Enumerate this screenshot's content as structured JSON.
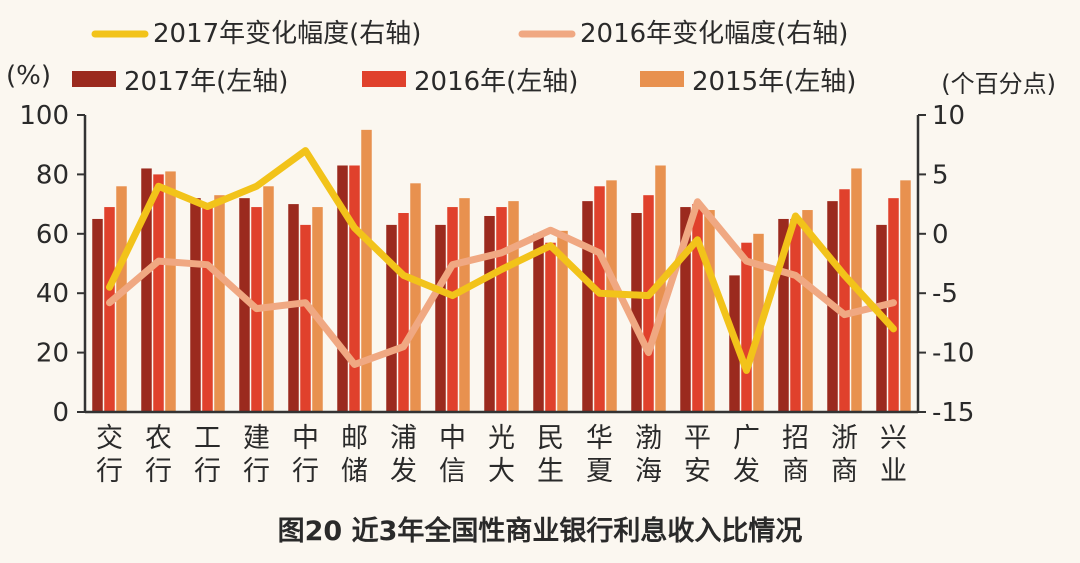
{
  "chart_data": {
    "type": "bar",
    "title": "图20 近3年全国性商业银行利息收入比情况",
    "y_left_unit": "(%)",
    "y_right_unit": "(个百分点)",
    "ylim_left": [
      0,
      100
    ],
    "ylim_right": [
      -15,
      10
    ],
    "yticks_left": [
      0,
      20,
      40,
      60,
      80,
      100
    ],
    "yticks_right": [
      -15,
      -10,
      -5,
      0,
      5,
      10
    ],
    "categories": [
      "交行",
      "农行",
      "工行",
      "建行",
      "中行",
      "邮储",
      "浦发",
      "中信",
      "光大",
      "民生",
      "华夏",
      "渤海",
      "平安",
      "广发",
      "招商",
      "浙商",
      "兴业"
    ],
    "bar_series": [
      {
        "name": "2017年(左轴)",
        "color": "#9b2a1e",
        "values": [
          65,
          82,
          72,
          72,
          70,
          83,
          63,
          63,
          66,
          60,
          71,
          67,
          69,
          46,
          65,
          71,
          63
        ]
      },
      {
        "name": "2016年(左轴)",
        "color": "#e0412c",
        "values": [
          69,
          80,
          70,
          69,
          63,
          83,
          67,
          69,
          69,
          57,
          76,
          73,
          70,
          57,
          65,
          75,
          72
        ]
      },
      {
        "name": "2015年(左轴)",
        "color": "#e8914f",
        "values": [
          76,
          81,
          73,
          76,
          69,
          95,
          77,
          72,
          71,
          61,
          78,
          83,
          68,
          60,
          68,
          82,
          78
        ]
      }
    ],
    "line_series": [
      {
        "name": "2017年变化幅度(右轴)",
        "color": "#f2c31a",
        "values": [
          -4.5,
          4,
          2.3,
          4,
          7,
          0.5,
          -3.5,
          -5.2,
          -3,
          -1,
          -5,
          -5.2,
          -0.5,
          -11.5,
          1.5,
          -3.5,
          -8
        ]
      },
      {
        "name": "2016年变化幅度(右轴)",
        "color": "#f0a882",
        "values": [
          -5.8,
          -2.3,
          -2.6,
          -6.3,
          -5.8,
          -11,
          -9.5,
          -2.6,
          -1.6,
          0.3,
          -1.6,
          -10,
          2.7,
          -2.3,
          -3.5,
          -6.8,
          -5.8
        ]
      }
    ],
    "legend_placement": "top",
    "grid": false
  }
}
